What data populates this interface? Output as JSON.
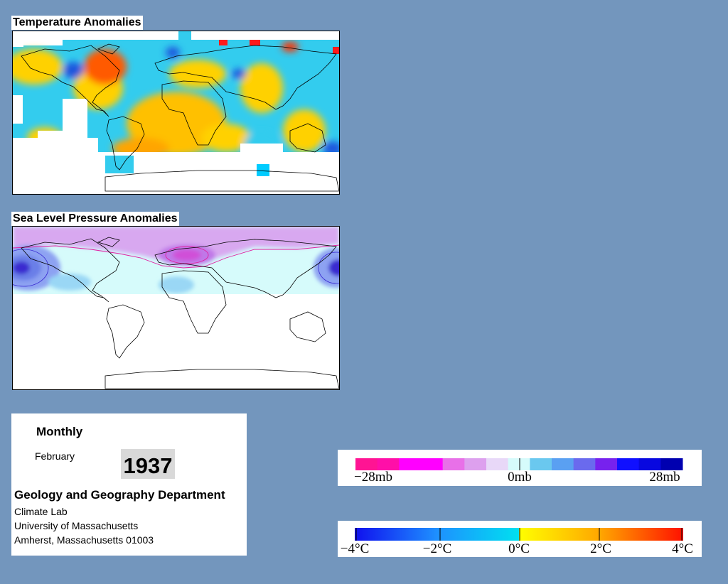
{
  "temperature_panel": {
    "title": "Temperature Anomalies",
    "colors": {
      "land_outline": "#000000",
      "no_data": "#ffffff",
      "cold": "#33ccee",
      "mild_warm": "#ffd100",
      "warm": "#ffa500",
      "hot": "#ff3300",
      "very_cold": "#1a55dd"
    }
  },
  "pressure_panel": {
    "title": "Sea Level Pressure Anomalies",
    "colors": {
      "neutral_positive": "#d6fbfb",
      "negative_light": "#d8a8f0",
      "negative_medium": "#c078e8",
      "negative_strong": "#d050d8",
      "positive_medium": "#6a7fe8",
      "positive_strong": "#3a2bd0",
      "contour": "#e020a0"
    }
  },
  "info": {
    "period_type": "Monthly",
    "month": "February",
    "year": "1937",
    "department": "Geology and Geography Department",
    "lab": "Climate Lab",
    "university": "University of Massachusetts",
    "address": "Amherst, Massachusetts 01003"
  },
  "pressure_legend": {
    "labels": [
      "−28mb",
      "0mb",
      "28mb"
    ],
    "colors": [
      "#ff1493",
      "#ff0fa8",
      "#ff00ff",
      "#ff00ff",
      "#e870e8",
      "#dda0ee",
      "#e8d8f8",
      "#d6fbfb",
      "#6ac8ef",
      "#5aa0f2",
      "#6a6aee",
      "#7722ee",
      "#1010ff",
      "#0808e0",
      "#0000b0"
    ]
  },
  "temperature_legend": {
    "labels": [
      "−4°C",
      "−2°C",
      "0°C",
      "2°C",
      "4°C"
    ],
    "colors": [
      "#1010ee",
      "#1e90ff",
      "#00d8f0",
      "#ffff00",
      "#ffa500",
      "#ff2200"
    ]
  }
}
